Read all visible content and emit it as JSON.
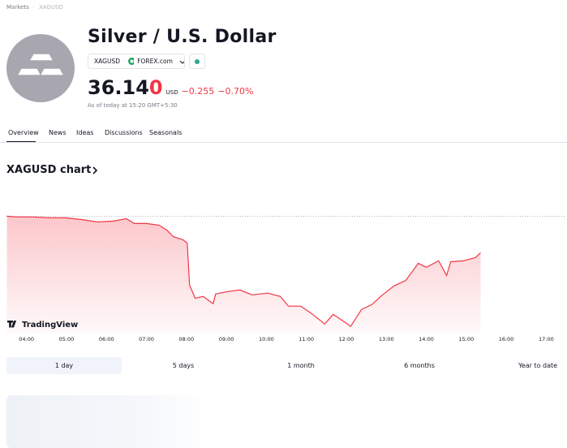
{
  "breadcrumb": [
    "Markets",
    "XAGUSD"
  ],
  "header": {
    "title": "Silver / U.S. Dollar",
    "symbol": "XAGUSD",
    "exchange": "FOREX.com",
    "price_main": "36.14",
    "price_last_digit": "0",
    "currency": "USD",
    "change": "−0.255",
    "change_pct": "−0.70%",
    "as_of": "As of today at 15:20 GMT+5:30"
  },
  "tabs": [
    "Overview",
    "News",
    "Ideas",
    "Discussions",
    "Seasonals"
  ],
  "chart_heading": "XAGUSD chart",
  "chart_data": {
    "type": "line",
    "x": [
      3.51,
      3.76,
      4.16,
      4.57,
      4.97,
      5.38,
      5.78,
      6.19,
      6.49,
      6.7,
      7.0,
      7.31,
      7.51,
      7.67,
      7.91,
      8.02,
      8.08,
      8.22,
      8.42,
      8.67,
      8.73,
      9.03,
      9.34,
      9.64,
      10.04,
      10.35,
      10.55,
      10.86,
      11.16,
      11.46,
      11.67,
      11.97,
      12.11,
      12.38,
      12.64,
      12.88,
      13.19,
      13.49,
      13.8,
      14.0,
      14.31,
      14.51,
      14.61,
      14.92,
      15.23,
      15.36
    ],
    "series": [
      {
        "name": "XAGUSD",
        "color": "#f23645",
        "values": [
          36.395,
          36.39,
          36.39,
          36.384,
          36.384,
          36.372,
          36.355,
          36.361,
          36.378,
          36.344,
          36.344,
          36.333,
          36.299,
          36.253,
          36.231,
          36.208,
          35.913,
          35.822,
          35.834,
          35.783,
          35.851,
          35.868,
          35.879,
          35.845,
          35.857,
          35.834,
          35.766,
          35.766,
          35.709,
          35.641,
          35.709,
          35.652,
          35.624,
          35.743,
          35.777,
          35.839,
          35.907,
          35.947,
          36.066,
          36.038,
          36.083,
          35.981,
          36.077,
          36.083,
          36.106,
          36.14
        ]
      }
    ],
    "prev_close_line": 36.395,
    "xlim": [
      3.5,
      17.5
    ],
    "ylim": [
      35.58,
      36.46
    ],
    "xticks": [
      {
        "value": 4,
        "label": "04:00"
      },
      {
        "value": 5,
        "label": "05:00"
      },
      {
        "value": 6,
        "label": "06:00"
      },
      {
        "value": 7,
        "label": "07:00"
      },
      {
        "value": 8,
        "label": "08:00"
      },
      {
        "value": 9,
        "label": "09:00"
      },
      {
        "value": 10,
        "label": "10:00"
      },
      {
        "value": 11,
        "label": "11:00"
      },
      {
        "value": 12,
        "label": "12:00"
      },
      {
        "value": 13,
        "label": "13:00"
      },
      {
        "value": 14,
        "label": "14:00"
      },
      {
        "value": 15,
        "label": "15:00"
      },
      {
        "value": 16,
        "label": "16:00"
      },
      {
        "value": 17,
        "label": "17:00"
      }
    ],
    "watermark": "TradingView"
  },
  "ranges": [
    "1 day",
    "5 days",
    "1 month",
    "6 months",
    "Year to date"
  ]
}
